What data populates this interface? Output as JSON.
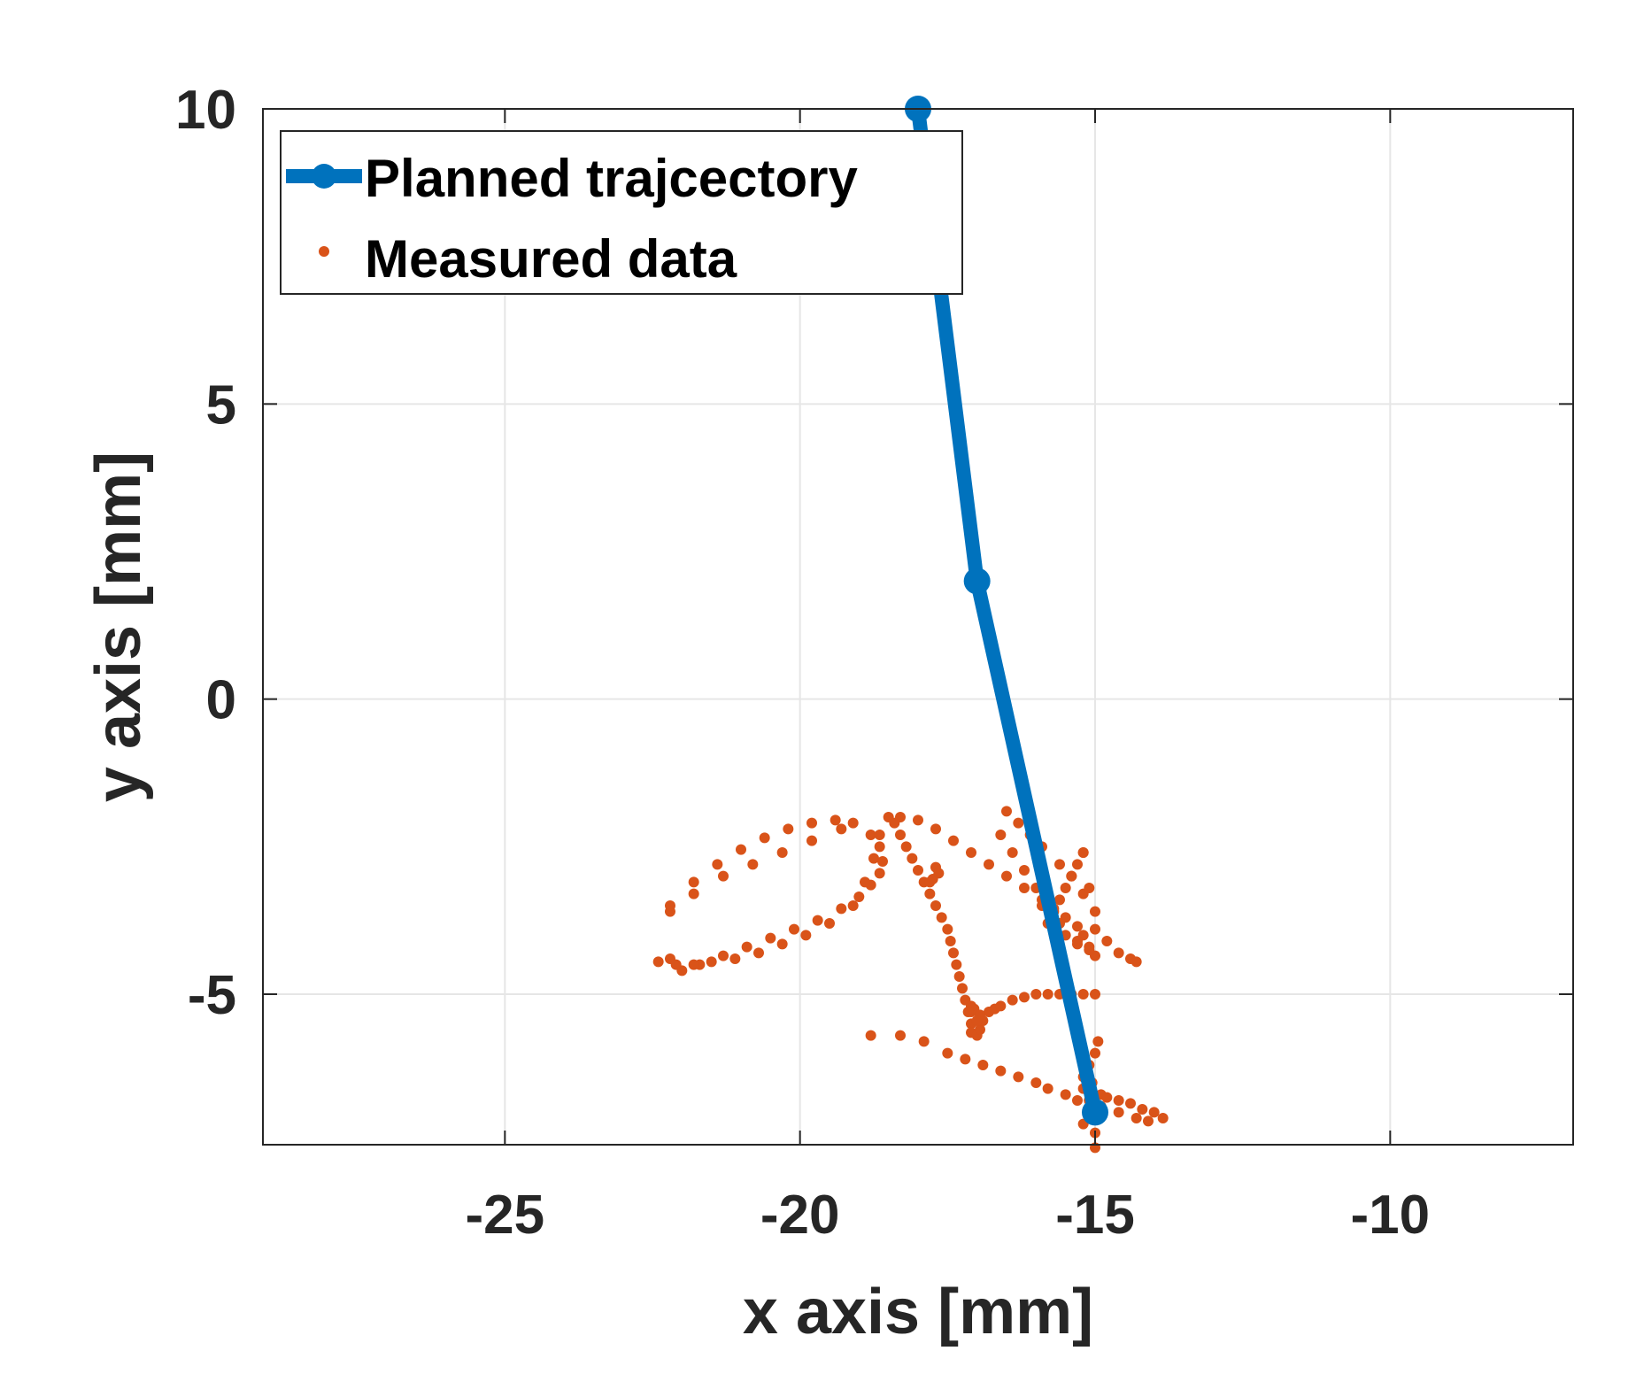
{
  "chart_data": {
    "type": "line",
    "title": "",
    "xlabel": "x axis [mm]",
    "ylabel": "y axis [mm]",
    "xlim": [
      -29.1,
      -6.9
    ],
    "ylim": [
      -7.55,
      10
    ],
    "xticks": [
      -25,
      -20,
      -15,
      -10
    ],
    "xtick_labels": [
      "-25",
      "-20",
      "-15",
      "-10"
    ],
    "yticks": [
      -5,
      0,
      5,
      10
    ],
    "ytick_labels": [
      "-5",
      "0",
      "5",
      "10"
    ],
    "grid": true,
    "legend_position": "top-left",
    "colors": {
      "planned": "#0072BD",
      "measured": "#D95319",
      "axis": "#262626",
      "grid": "#E6E6E6"
    },
    "series": [
      {
        "name": "Planned trajcectory",
        "style": "line-with-circle-markers",
        "x": [
          -18.0,
          -17.0,
          -15.0
        ],
        "y": [
          10.0,
          2.0,
          -7.0
        ]
      },
      {
        "name": "Measured data",
        "style": "dot-markers",
        "x": [
          -15.0,
          -15.0,
          -15.2,
          -15.1,
          -14.9,
          -14.8,
          -14.6,
          -14.4,
          -14.2,
          -14.0,
          -13.85,
          -14.1,
          -14.3,
          -14.6,
          -14.9,
          -15.1,
          -15.2,
          -15.2,
          -15.1,
          -15.0,
          -14.95,
          -15.05,
          -15.0,
          -15.3,
          -15.5,
          -15.8,
          -16.0,
          -16.3,
          -16.6,
          -16.9,
          -17.2,
          -17.5,
          -17.9,
          -18.3,
          -18.8,
          -19.3,
          -19.8,
          -20.3,
          -20.8,
          -21.3,
          -21.8,
          -22.2,
          -22.0,
          -21.7,
          -21.3,
          -20.9,
          -20.5,
          -20.1,
          -19.7,
          -19.3,
          -19.0,
          -18.8,
          -18.65,
          -18.6,
          -18.65,
          -18.8,
          -19.1,
          -19.4,
          -19.8,
          -20.2,
          -20.6,
          -21.0,
          -21.4,
          -21.8,
          -22.2,
          -22.2,
          -22.4,
          -22.1,
          -21.8,
          -21.5,
          -21.1,
          -20.7,
          -20.3,
          -19.9,
          -19.5,
          -19.1,
          -18.9,
          -18.75,
          -18.65,
          -18.5,
          -18.3,
          -18.0,
          -17.7,
          -17.4,
          -17.1,
          -16.8,
          -16.5,
          -16.2,
          -15.9,
          -15.7,
          -15.5,
          -15.3,
          -15.2,
          -15.1,
          -15.0,
          -15.1,
          -15.3,
          -15.5,
          -15.6,
          -15.8,
          -16.0,
          -16.2,
          -16.4,
          -16.6,
          -16.5,
          -16.3,
          -16.1,
          -15.9,
          -15.6,
          -15.4,
          -15.2,
          -15.0,
          -14.8,
          -14.6,
          -14.4,
          -14.3,
          -15.2,
          -15.3,
          -15.4,
          -15.5,
          -15.6,
          -15.7,
          -15.8,
          -15.9,
          -15.2,
          -15.0,
          -15.3,
          -15.1,
          -18.4,
          -18.3,
          -18.2,
          -18.1,
          -18.0,
          -17.9,
          -17.8,
          -17.7,
          -17.6,
          -17.5,
          -17.45,
          -17.4,
          -17.35,
          -17.3,
          -17.25,
          -17.2,
          -17.1,
          -17.1,
          -17.1,
          -17.0,
          -16.95,
          -16.9,
          -16.8,
          -16.7,
          -16.6,
          -16.4,
          -16.2,
          -16.0,
          -15.8,
          -15.6,
          -15.4,
          -15.2,
          -15.0,
          -17.05,
          -16.95,
          -17.0,
          -17.1,
          -17.15,
          -17.7,
          -17.65,
          -17.75,
          -17.8
        ],
        "y": [
          -7.35,
          -7.6,
          -7.2,
          -6.8,
          -6.7,
          -6.75,
          -6.8,
          -6.85,
          -6.95,
          -7.0,
          -7.1,
          -7.15,
          -7.1,
          -7.0,
          -6.9,
          -6.8,
          -6.6,
          -6.4,
          -6.2,
          -6.0,
          -5.8,
          -6.5,
          -7.0,
          -6.8,
          -6.7,
          -6.6,
          -6.5,
          -6.4,
          -6.3,
          -6.2,
          -6.1,
          -6.0,
          -5.8,
          -5.7,
          -5.7,
          -2.2,
          -2.4,
          -2.6,
          -2.8,
          -3.0,
          -3.3,
          -3.6,
          -4.6,
          -4.5,
          -4.35,
          -4.2,
          -4.05,
          -3.9,
          -3.75,
          -3.55,
          -3.35,
          -3.15,
          -2.95,
          -2.75,
          -2.5,
          -2.3,
          -2.1,
          -2.05,
          -2.1,
          -2.2,
          -2.35,
          -2.55,
          -2.8,
          -3.1,
          -3.5,
          -4.4,
          -4.45,
          -4.5,
          -4.5,
          -4.45,
          -4.4,
          -4.3,
          -4.15,
          -4.0,
          -3.8,
          -3.5,
          -3.1,
          -2.7,
          -2.3,
          -2.0,
          -2.0,
          -2.05,
          -2.2,
          -2.4,
          -2.6,
          -2.8,
          -3.0,
          -3.2,
          -3.4,
          -3.55,
          -3.7,
          -3.85,
          -4.0,
          -4.2,
          -4.35,
          -4.25,
          -4.15,
          -4.0,
          -3.8,
          -3.5,
          -3.2,
          -2.9,
          -2.6,
          -2.3,
          -1.9,
          -2.1,
          -2.3,
          -2.5,
          -2.8,
          -3.0,
          -3.3,
          -3.6,
          -4.1,
          -4.3,
          -4.4,
          -4.45,
          -2.6,
          -2.8,
          -3.0,
          -3.2,
          -3.4,
          -3.6,
          -3.8,
          -3.5,
          -2.6,
          -3.9,
          -4.1,
          -3.2,
          -2.1,
          -2.3,
          -2.5,
          -2.7,
          -2.9,
          -3.1,
          -3.3,
          -3.5,
          -3.7,
          -3.9,
          -4.1,
          -4.3,
          -4.5,
          -4.7,
          -4.9,
          -5.1,
          -5.3,
          -5.5,
          -5.65,
          -5.7,
          -5.6,
          -5.45,
          -5.3,
          -5.25,
          -5.2,
          -5.1,
          -5.05,
          -5.0,
          -5.0,
          -5.0,
          -5.0,
          -5.0,
          -5.0,
          -5.25,
          -5.35,
          -5.45,
          -5.2,
          -5.3,
          -2.85,
          -2.95,
          -3.05,
          -3.1
        ]
      }
    ]
  }
}
